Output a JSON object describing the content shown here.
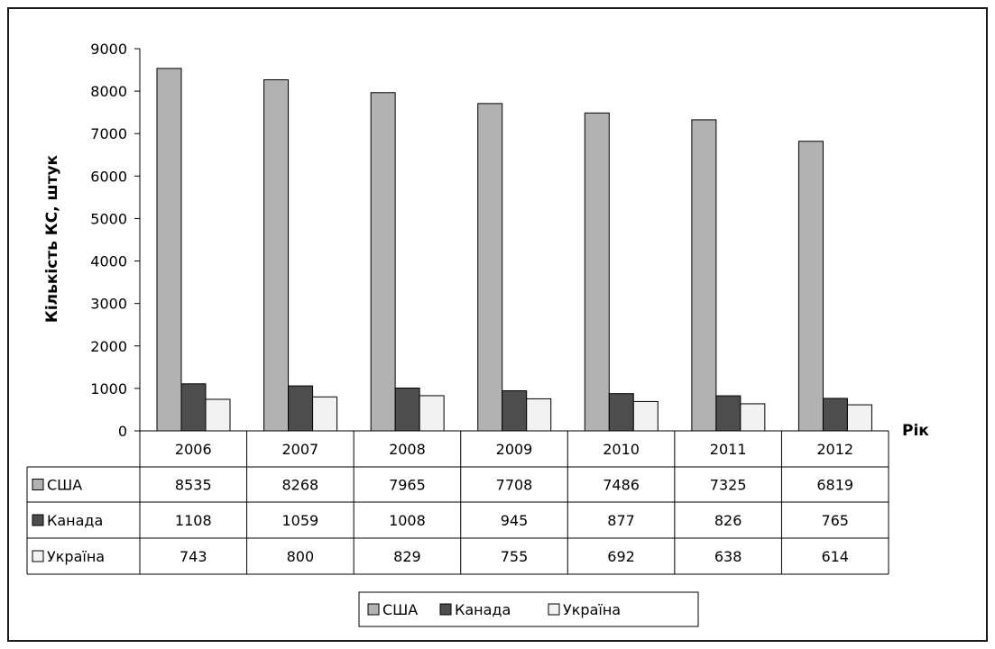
{
  "chart_data": {
    "type": "bar",
    "title": "",
    "xlabel": "Рік",
    "ylabel": "Кількість КС, штук",
    "ylim": [
      0,
      9000
    ],
    "yticks": [
      "0",
      "1000",
      "2000",
      "3000",
      "4000",
      "5000",
      "6000",
      "7000",
      "8000",
      "9000"
    ],
    "grid": false,
    "legend_position": "bottom",
    "categories": [
      "2006",
      "2007",
      "2008",
      "2009",
      "2010",
      "2011",
      "2012"
    ],
    "series": [
      {
        "name": "США",
        "color": "#b2b2b2",
        "values": [
          8535,
          8268,
          7965,
          7708,
          7486,
          7325,
          6819
        ]
      },
      {
        "name": "Канада",
        "color": "#4d4d4d",
        "values": [
          1108,
          1059,
          1008,
          945,
          877,
          826,
          765
        ]
      },
      {
        "name": "Україна",
        "color": "#f2f2f2",
        "values": [
          743,
          800,
          829,
          755,
          692,
          638,
          614
        ]
      }
    ]
  }
}
